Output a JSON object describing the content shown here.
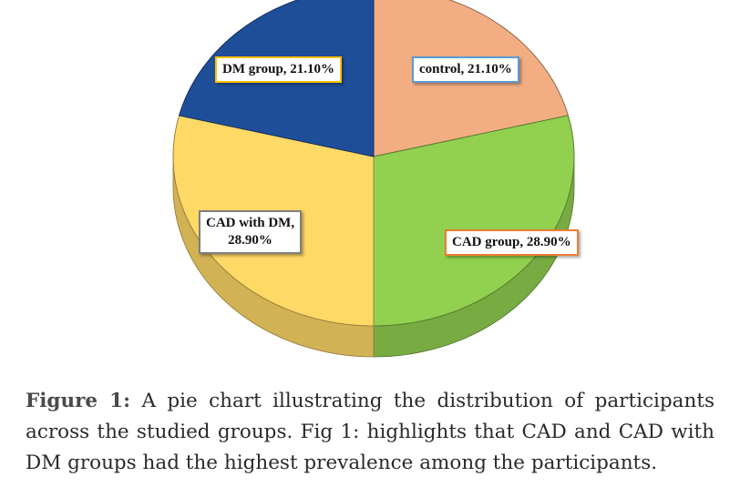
{
  "chart_data": {
    "type": "pie",
    "slices": [
      {
        "label": "control",
        "value": 21.1,
        "display": "control, 21.10%",
        "color": "#F2AE82",
        "border": "#5B9BD5"
      },
      {
        "label": "CAD group",
        "value": 28.9,
        "display": "CAD group, 28.90%",
        "color": "#92D050",
        "border": "#ED7D31"
      },
      {
        "label": "CAD with DM",
        "value": 28.9,
        "display_lines": [
          "CAD with DM,",
          "28.90%"
        ],
        "color": "#FFD966",
        "border": "#7F7F7F"
      },
      {
        "label": "DM group",
        "value": 21.1,
        "display": "DM group, 21.10%",
        "color": "#1F4E99",
        "border": "#FFC000"
      }
    ],
    "start_angle_deg": 0,
    "direction": "clockwise",
    "style": "3d-tilted"
  },
  "caption": {
    "title": "Figure 1:",
    "text": " A pie chart illustrating the distribution of participants across the studied groups. Fig 1: highlights that CAD and CAD with DM groups had the highest prevalence among the participants."
  }
}
